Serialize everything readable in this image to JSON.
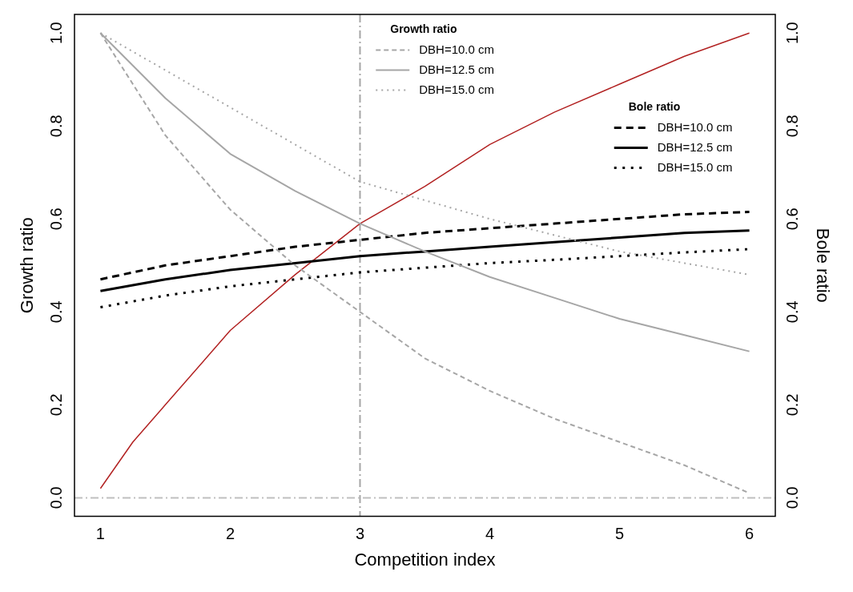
{
  "chart_data": {
    "type": "line",
    "xlabel": "Competition index",
    "ylabel": "Growth ratio",
    "y2label": "Bole ratio",
    "xlim": [
      0.8,
      6.2
    ],
    "xticks": [
      1,
      2,
      3,
      4,
      5,
      6
    ],
    "ylim": [
      -0.04,
      1.04
    ],
    "yticks": [
      {
        "value": 0,
        "label": "0.0"
      },
      {
        "value": 0.2,
        "label": "0.2"
      },
      {
        "value": 0.4,
        "label": "0.4"
      },
      {
        "value": 0.6,
        "label": "0.6"
      },
      {
        "value": 0.8,
        "label": "0.8"
      },
      {
        "value": 1,
        "label": "1.0"
      }
    ],
    "y2lim": [
      -0.04,
      1.04
    ],
    "y2ticks": [
      {
        "value": 0,
        "label": "0.0"
      },
      {
        "value": 0.2,
        "label": "0.2"
      },
      {
        "value": 0.4,
        "label": "0.4"
      },
      {
        "value": 0.6,
        "label": "0.6"
      },
      {
        "value": 0.8,
        "label": "0.8"
      },
      {
        "value": 1,
        "label": "1.0"
      }
    ],
    "x": [
      1,
      1.5,
      2,
      2.5,
      3,
      3.5,
      4,
      4.5,
      5,
      5.5,
      6
    ],
    "legend": "top right",
    "grid": false,
    "marker": "none",
    "annotations": [
      "Growth ratio",
      "Bole ratio"
    ],
    "ref_lines": [
      {
        "axis": "x",
        "value": 3,
        "label": null,
        "color": "#a6a6a6",
        "line_style": "dashdot"
      },
      {
        "axis": "y",
        "value": 0,
        "label": null,
        "color": "#bfbfbf",
        "line_style": "dashdot"
      }
    ],
    "series": [
      {
        "name": "DBH=10.0 cm",
        "color": "#a6a6a6",
        "line_style": "dashed",
        "values": [
          1,
          0.78,
          0.62,
          0.5,
          0.4,
          0.3,
          0.23,
          0.17,
          0.12,
          0.07,
          0.01
        ]
      },
      {
        "name": "DBH=12.5 cm",
        "color": "#a6a6a6",
        "line_style": "solid",
        "values": [
          1,
          0.86,
          0.74,
          0.66,
          0.59,
          0.53,
          0.475,
          0.43,
          0.385,
          0.35,
          0.315
        ]
      },
      {
        "name": "DBH=15.0 cm",
        "color": "#a6a6a6",
        "line_style": "dotted",
        "values": [
          1,
          0.92,
          0.84,
          0.76,
          0.68,
          0.64,
          0.6,
          0.565,
          0.53,
          0.505,
          0.48
        ]
      },
      {
        "name": "DBH=10.0 cm",
        "color": "#000000",
        "line_style": "dashed",
        "axis": "y2",
        "values": [
          0.47,
          0.5,
          0.52,
          0.54,
          0.555,
          0.57,
          0.58,
          0.59,
          0.6,
          0.61,
          0.615
        ]
      },
      {
        "name": "DBH=12.5 cm",
        "color": "#000000",
        "line_style": "solid",
        "axis": "y2",
        "values": [
          0.445,
          0.47,
          0.49,
          0.505,
          0.52,
          0.53,
          0.54,
          0.55,
          0.56,
          0.57,
          0.575
        ]
      },
      {
        "name": "DBH=15.0 cm",
        "color": "#000000",
        "line_style": "dotted",
        "axis": "y2",
        "values": [
          0.41,
          0.435,
          0.455,
          0.47,
          0.485,
          0.495,
          0.505,
          0.512,
          0.52,
          0.528,
          0.535
        ]
      },
      {
        "color": "#b22222",
        "line_style": "solid",
        "x": [
          1,
          1.25,
          1.5,
          2,
          2.5,
          3,
          3.5,
          4,
          4.5,
          5,
          5.5,
          6
        ],
        "values": [
          0.02,
          0.12,
          0.2,
          0.36,
          0.48,
          0.59,
          0.67,
          0.76,
          0.83,
          0.89,
          0.95,
          1.0
        ]
      }
    ]
  }
}
